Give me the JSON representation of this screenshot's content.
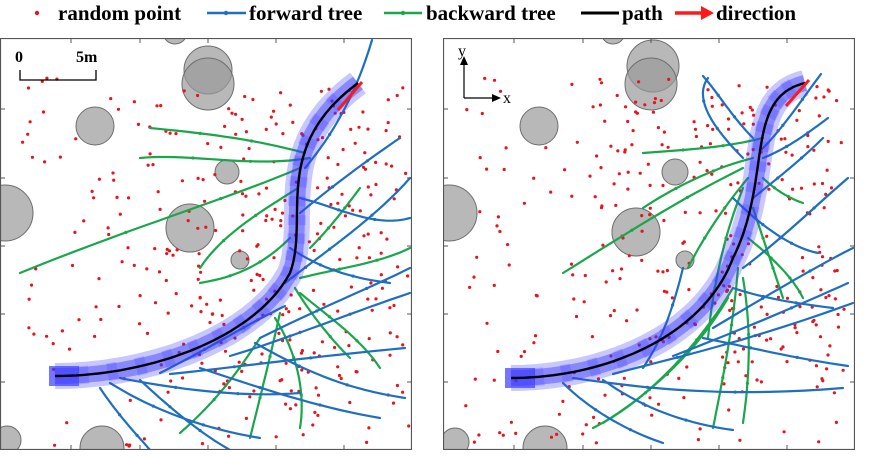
{
  "legend": {
    "random_point": "random point",
    "forward_tree": "forward tree",
    "backward_tree": "backward tree",
    "path": "path",
    "direction": "direction"
  },
  "colors": {
    "random_point": "#e8141c",
    "forward_tree": "#1f6fc0",
    "backward_tree": "#1aa64b",
    "path": "#000000",
    "direction": "#ff1a1a",
    "corridor": "#3a3aff",
    "obstacle": "#9a9a9a"
  },
  "scale_bar": {
    "start": "0",
    "end": "5m"
  },
  "axes_indicator": {
    "y": "y",
    "x": "x"
  }
}
